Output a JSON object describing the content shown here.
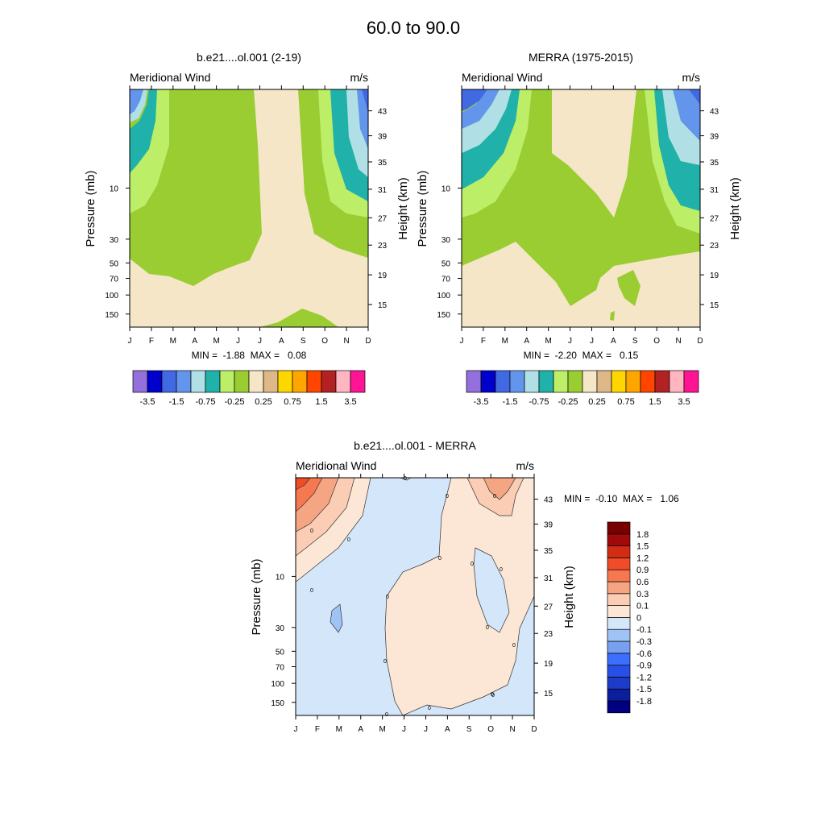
{
  "title": "60.0 to  90.0",
  "chart_data": [
    {
      "type": "contour",
      "id": "model",
      "title": "b.e21....ol.001 (2-19)",
      "left_label": "Meridional Wind",
      "right_label": "m/s",
      "ylabel": "Pressure (mb)",
      "ylabel_right": "Height (km)",
      "months": [
        "J",
        "F",
        "M",
        "A",
        "M",
        "J",
        "J",
        "A",
        "S",
        "O",
        "N",
        "D"
      ],
      "pressure_ticks": [
        "10",
        "30",
        "50",
        "70",
        "100",
        "150"
      ],
      "height_ticks": [
        "43",
        "39",
        "35",
        "31",
        "27",
        "23",
        "19",
        "15"
      ],
      "minmax": "MIN =  -1.88  MAX =   0.08",
      "min": -1.88,
      "max": 0.08
    },
    {
      "type": "contour",
      "id": "merra",
      "title": "MERRA (1975-2015)",
      "left_label": "Meridional Wind",
      "right_label": "m/s",
      "ylabel": "Pressure (mb)",
      "ylabel_right": "Height (km)",
      "months": [
        "J",
        "F",
        "M",
        "A",
        "M",
        "J",
        "J",
        "A",
        "S",
        "O",
        "N",
        "D"
      ],
      "pressure_ticks": [
        "10",
        "30",
        "50",
        "70",
        "100",
        "150"
      ],
      "height_ticks": [
        "43",
        "39",
        "35",
        "31",
        "27",
        "23",
        "19",
        "15"
      ],
      "minmax": "MIN =  -2.20  MAX =   0.15",
      "min": -2.2,
      "max": 0.15
    },
    {
      "type": "contour",
      "id": "diff",
      "title": "b.e21....ol.001 - MERRA",
      "left_label": "Meridional Wind",
      "right_label": "m/s",
      "ylabel": "Pressure (mb)",
      "ylabel_right": "Height (km)",
      "months": [
        "J",
        "F",
        "M",
        "A",
        "M",
        "J",
        "J",
        "A",
        "S",
        "O",
        "N",
        "D"
      ],
      "pressure_ticks": [
        "10",
        "30",
        "50",
        "70",
        "100",
        "150"
      ],
      "height_ticks": [
        "43",
        "39",
        "35",
        "31",
        "27",
        "23",
        "19",
        "15"
      ],
      "minmax": "MIN =  -0.10  MAX =   1.06",
      "min": -0.1,
      "max": 1.06,
      "contour_labels": [
        "0",
        "0",
        "0",
        "0",
        "0",
        "0",
        "0",
        "0",
        "0",
        "0",
        "0",
        "0",
        "0",
        "0",
        "0",
        "0",
        "0"
      ]
    }
  ],
  "colorbar_top": {
    "colors": [
      "#9370DB",
      "#0000CD",
      "#4169E1",
      "#6495ED",
      "#B0E0E6",
      "#20B2AA",
      "#BCEE68",
      "#9ACD32",
      "#F5E6C8",
      "#DEB887",
      "#FFD700",
      "#FFA500",
      "#FF4500",
      "#B22222",
      "#FFB6C1",
      "#FF1493"
    ],
    "labels": [
      "-3.5",
      "-1.5",
      "-0.75",
      "-0.25",
      "0.25",
      "0.75",
      "1.5",
      "3.5"
    ]
  },
  "colorbar_diff": {
    "colors": [
      "#000080",
      "#0A1E9E",
      "#1E3CC8",
      "#2850E6",
      "#3C6EFF",
      "#78A0F0",
      "#A0C3F5",
      "#D4E6FA",
      "#FCE6D6",
      "#FACDB4",
      "#F5A582",
      "#F57850",
      "#F04C28",
      "#D22D14",
      "#A00A0A",
      "#780000"
    ],
    "labels": [
      "1.8",
      "1.5",
      "1.2",
      "0.9",
      "0.6",
      "0.3",
      "0.1",
      "0",
      "-0.1",
      "-0.3",
      "-0.6",
      "-0.9",
      "-1.2",
      "-1.5",
      "-1.8"
    ]
  }
}
